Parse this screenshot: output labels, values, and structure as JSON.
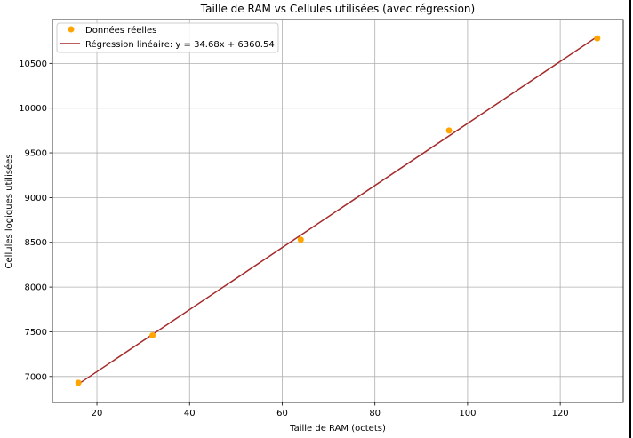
{
  "chart_data": {
    "type": "scatter",
    "title": "Taille de RAM vs Cellules utilisées (avec régression)",
    "xlabel": "Taille de RAM (octets)",
    "ylabel": "Cellules logiques utilisées",
    "xlim": [
      10.4,
      133.6
    ],
    "ylim": [
      6710,
      10990
    ],
    "xticks": [
      20,
      40,
      60,
      80,
      100,
      120
    ],
    "yticks": [
      7000,
      7500,
      8000,
      8500,
      9000,
      9500,
      10000,
      10500
    ],
    "grid": true,
    "legend_position": "upper-left",
    "series": [
      {
        "name": "Données réelles",
        "kind": "scatter",
        "color": "#FFA500",
        "x": [
          16,
          32,
          64,
          96,
          128
        ],
        "y": [
          6930,
          7460,
          8530,
          9750,
          10780
        ]
      },
      {
        "name": "Régression linéaire: y = 34.68x + 6360.54",
        "kind": "line",
        "color": "#A52A2A",
        "slope": 34.68,
        "intercept": 6360.54,
        "x": [
          16,
          128
        ]
      }
    ]
  }
}
